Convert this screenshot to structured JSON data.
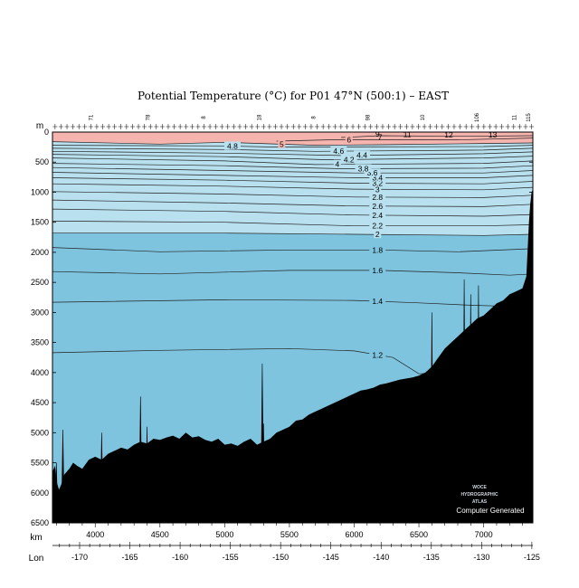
{
  "chart_data": {
    "type": "heatmap",
    "title": "Potential Temperature (°C) for P01 47°N (500:1) – EAST",
    "y_unit": "m",
    "x_label": "km",
    "lon_label": "Lon",
    "y_range": [
      0,
      6500
    ],
    "y_ticks": [
      0,
      500,
      1000,
      1500,
      2000,
      2500,
      3000,
      3500,
      4000,
      4500,
      5000,
      5500,
      6000,
      6500
    ],
    "x_range": [
      3670,
      7380
    ],
    "x_ticks": [
      4000,
      4500,
      5000,
      5500,
      6000,
      6500,
      7000
    ],
    "lon_range": [
      -172.7,
      -124.9
    ],
    "lon_ticks": [
      -170,
      -165,
      -160,
      -155,
      -150,
      -145,
      -140,
      -135,
      -130,
      -125
    ],
    "station_labels": [
      {
        "km": 3980,
        "text": "71"
      },
      {
        "km": 4420,
        "text": "78"
      },
      {
        "km": 4850,
        "text": "8"
      },
      {
        "km": 5280,
        "text": "18"
      },
      {
        "km": 5700,
        "text": "8"
      },
      {
        "km": 6120,
        "text": "98"
      },
      {
        "km": 6540,
        "text": "10"
      },
      {
        "km": 6960,
        "text": "106"
      },
      {
        "km": 7250,
        "text": "11"
      },
      {
        "km": 7360,
        "text": "115"
      }
    ],
    "color_bands": [
      {
        "from": 0,
        "to": 2.0,
        "color": "#7ec4df"
      },
      {
        "from": 2.0,
        "to": 5.0,
        "color": "#b8e0ee"
      },
      {
        "from": 5.0,
        "to": 20,
        "color": "#f5b4ae"
      }
    ],
    "isotherms": [
      {
        "value": 1.2,
        "label": "1.2",
        "x": [
          3670,
          4500,
          5500,
          6000,
          6300,
          6500,
          6700,
          7000
        ],
        "depth": [
          3670,
          3630,
          3600,
          3640,
          3750,
          4020,
          4000,
          3950
        ]
      },
      {
        "value": 1.4,
        "label": "1.4",
        "x": [
          3670,
          5000,
          6000,
          6500,
          6900,
          7200,
          7380
        ],
        "depth": [
          2830,
          2790,
          2800,
          2840,
          2880,
          2900,
          2940
        ]
      },
      {
        "value": 1.6,
        "label": "1.6",
        "x": [
          3670,
          4500,
          5500,
          6200,
          6800,
          7200,
          7380
        ],
        "depth": [
          2320,
          2360,
          2300,
          2300,
          2340,
          2380,
          2360
        ]
      },
      {
        "value": 1.8,
        "label": "1.8",
        "x": [
          3670,
          4500,
          5500,
          6200,
          6800,
          7380
        ],
        "depth": [
          1920,
          1990,
          1960,
          1960,
          1990,
          1940
        ]
      },
      {
        "value": 2.0,
        "label": "2",
        "x": [
          3670,
          5000,
          6000,
          7000,
          7380
        ],
        "depth": [
          1680,
          1680,
          1700,
          1720,
          1700
        ]
      },
      {
        "value": 2.2,
        "label": "2.2",
        "x": [
          3670,
          5000,
          6000,
          7000,
          7380
        ],
        "depth": [
          1480,
          1500,
          1560,
          1560,
          1540
        ]
      },
      {
        "value": 2.4,
        "label": "2.4",
        "x": [
          3670,
          5000,
          6000,
          7000,
          7380
        ],
        "depth": [
          1280,
          1320,
          1380,
          1400,
          1370
        ]
      },
      {
        "value": 2.6,
        "label": "2.6",
        "x": [
          3670,
          5000,
          6000,
          7000,
          7380
        ],
        "depth": [
          1130,
          1180,
          1230,
          1240,
          1200
        ]
      },
      {
        "value": 2.8,
        "label": "2.8",
        "x": [
          3670,
          5000,
          6000,
          7000,
          7380
        ],
        "depth": [
          990,
          1030,
          1080,
          1090,
          1050
        ]
      },
      {
        "value": 3.0,
        "label": "3",
        "x": [
          3670,
          5000,
          6000,
          7000,
          7380
        ],
        "depth": [
          860,
          900,
          950,
          960,
          920
        ]
      },
      {
        "value": 3.2,
        "label": "3.2",
        "x": [
          3670,
          5000,
          6000,
          7000,
          7380
        ],
        "depth": [
          760,
          800,
          850,
          860,
          820
        ]
      },
      {
        "value": 3.4,
        "label": "3.4",
        "x": [
          3670,
          5000,
          6000,
          7000,
          7380
        ],
        "depth": [
          670,
          720,
          760,
          760,
          720
        ]
      },
      {
        "value": 3.6,
        "label": "3.6",
        "x": [
          3670,
          5000,
          6000,
          7000,
          7380
        ],
        "depth": [
          590,
          640,
          680,
          680,
          640
        ]
      },
      {
        "value": 3.8,
        "label": "3.8",
        "x": [
          3670,
          5000,
          5900,
          7000,
          7380
        ],
        "depth": [
          520,
          560,
          610,
          600,
          560
        ]
      },
      {
        "value": 4.0,
        "label": "4",
        "x": [
          3670,
          5000,
          5700,
          7000,
          7380
        ],
        "depth": [
          430,
          480,
          540,
          520,
          480
        ]
      },
      {
        "value": 4.2,
        "label": "4.2",
        "x": [
          3670,
          5000,
          5800,
          7000,
          7380
        ],
        "depth": [
          370,
          410,
          460,
          430,
          400
        ]
      },
      {
        "value": 4.4,
        "label": "4.4",
        "x": [
          3670,
          5000,
          5900,
          7000,
          7380
        ],
        "depth": [
          320,
          350,
          390,
          360,
          330
        ]
      },
      {
        "value": 4.6,
        "label": "4.6",
        "x": [
          3670,
          5000,
          5700,
          7000,
          7380
        ],
        "depth": [
          270,
          290,
          320,
          300,
          270
        ]
      },
      {
        "value": 4.8,
        "label": "4.8",
        "x": [
          3670,
          5000,
          5400,
          7000,
          7380
        ],
        "depth": [
          220,
          230,
          250,
          240,
          220
        ]
      },
      {
        "value": 5.0,
        "label": "5",
        "x": [
          3670,
          4500,
          5000,
          5700,
          6200,
          7000,
          7380
        ],
        "depth": [
          160,
          200,
          170,
          220,
          210,
          190,
          180
        ]
      },
      {
        "value": 6.0,
        "label": "6",
        "x": [
          5400,
          5800,
          6200,
          6800,
          7380
        ],
        "depth": [
          150,
          130,
          130,
          130,
          100
        ]
      },
      {
        "value": 7.0,
        "label": "7",
        "x": [
          5900,
          6200,
          6800,
          7380
        ],
        "depth": [
          90,
          60,
          70,
          60
        ]
      }
    ],
    "surface_labels": [
      {
        "x": 6180,
        "depth": 30,
        "text": "9"
      },
      {
        "x": 6200,
        "depth": 80,
        "text": "7"
      },
      {
        "x": 6410,
        "depth": 40,
        "text": "11"
      },
      {
        "x": 6730,
        "depth": 45,
        "text": "12"
      },
      {
        "x": 7070,
        "depth": 45,
        "text": "13"
      }
    ],
    "bathymetry": {
      "x": [
        3670,
        3690,
        3700,
        3720,
        3740,
        3760,
        3780,
        3800,
        3830,
        3860,
        3900,
        3950,
        4000,
        4050,
        4100,
        4150,
        4200,
        4250,
        4300,
        4350,
        4400,
        4450,
        4500,
        4550,
        4600,
        4650,
        4700,
        4750,
        4800,
        4850,
        4900,
        4950,
        5000,
        5050,
        5100,
        5150,
        5200,
        5250,
        5300,
        5350,
        5400,
        5450,
        5500,
        5550,
        5600,
        5650,
        5700,
        5750,
        5800,
        5850,
        5900,
        5950,
        6000,
        6050,
        6100,
        6150,
        6200,
        6250,
        6300,
        6350,
        6400,
        6450,
        6500,
        6550,
        6600,
        6650,
        6700,
        6750,
        6800,
        6850,
        6900,
        6950,
        7000,
        7050,
        7100,
        7150,
        7200,
        7250,
        7300,
        7330,
        7350,
        7360,
        7370,
        7380
      ],
      "depth": [
        5650,
        5550,
        5800,
        5950,
        5850,
        5700,
        5650,
        5600,
        5500,
        5550,
        5600,
        5450,
        5400,
        5450,
        5350,
        5300,
        5250,
        5280,
        5200,
        5150,
        5180,
        5100,
        5120,
        5080,
        5050,
        5100,
        5000,
        5080,
        5060,
        5120,
        5150,
        5100,
        5200,
        5180,
        5220,
        5150,
        5100,
        5200,
        5150,
        5100,
        5000,
        4950,
        4900,
        4800,
        4780,
        4700,
        4650,
        4600,
        4550,
        4500,
        4450,
        4400,
        4350,
        4300,
        4280,
        4250,
        4200,
        4180,
        4150,
        4120,
        4100,
        4080,
        4050,
        4000,
        3900,
        3750,
        3600,
        3500,
        3400,
        3300,
        3200,
        3100,
        3050,
        2950,
        2850,
        2800,
        2700,
        2650,
        2600,
        2400,
        1500,
        1200,
        1000,
        950
      ]
    },
    "seamounts": [
      {
        "x": 3700,
        "depth": 5500
      },
      {
        "x": 3750,
        "depth": 4950
      },
      {
        "x": 4050,
        "depth": 5000
      },
      {
        "x": 4350,
        "depth": 4400
      },
      {
        "x": 4400,
        "depth": 4900
      },
      {
        "x": 5290,
        "depth": 3850
      },
      {
        "x": 5300,
        "depth": 4850
      },
      {
        "x": 6600,
        "depth": 3000
      },
      {
        "x": 6850,
        "depth": 2450
      },
      {
        "x": 6900,
        "depth": 2700
      },
      {
        "x": 6960,
        "depth": 2550
      }
    ],
    "watermark": [
      "WOCE",
      "HYDROGRAPHIC",
      "ATLAS"
    ],
    "note": "Computer Generated"
  }
}
